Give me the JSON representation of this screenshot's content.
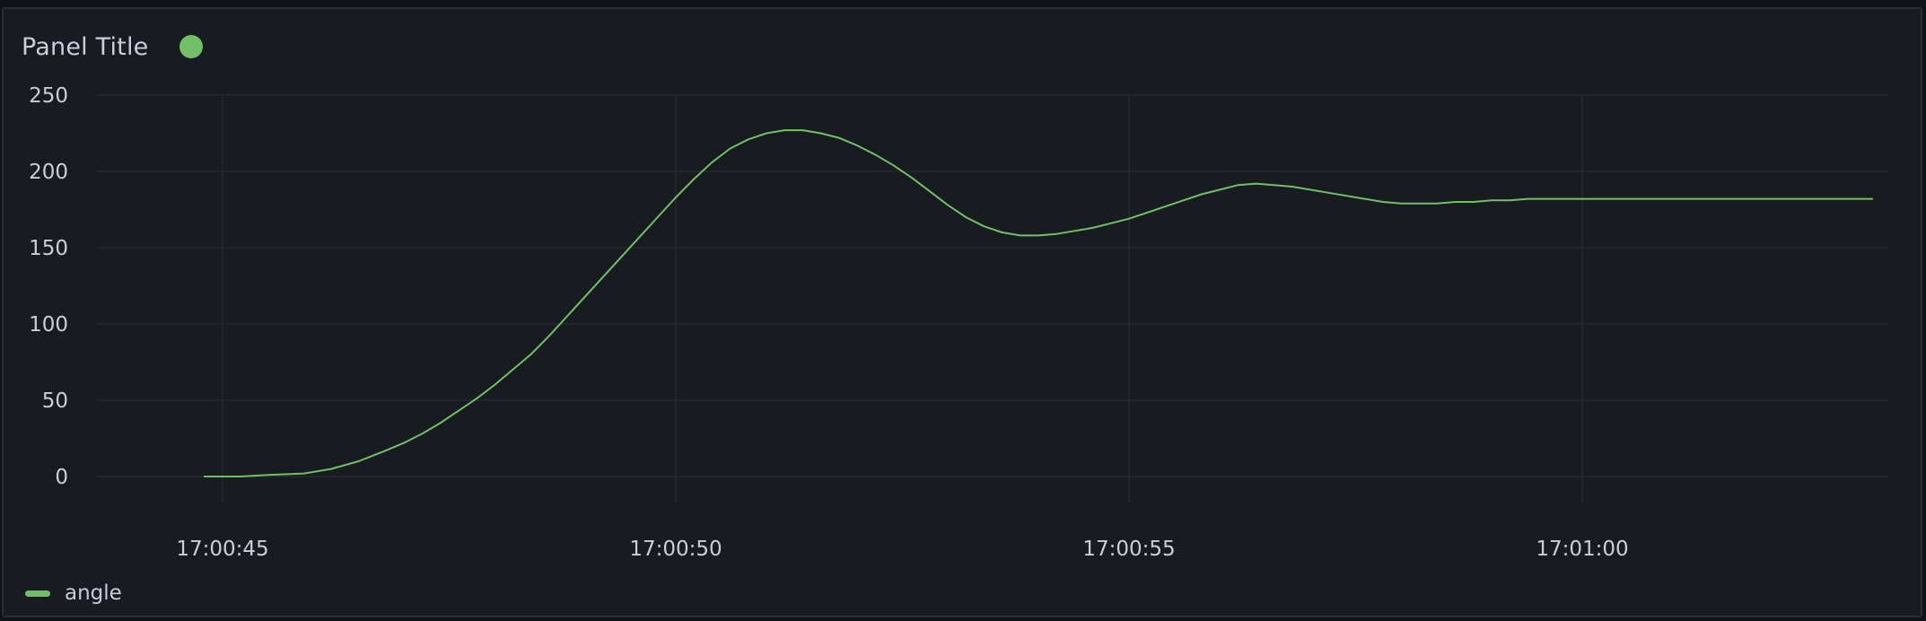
{
  "panel": {
    "title": "Panel Title",
    "status_color": "#73bf69"
  },
  "chart_data": {
    "type": "line",
    "ylim": [
      0,
      250
    ],
    "y_ticks": [
      0,
      50,
      100,
      150,
      200,
      250
    ],
    "x_range": [
      "17:00:43",
      "17:01:04"
    ],
    "x_ticks": [
      "17:00:45",
      "17:00:50",
      "17:00:55",
      "17:01:00"
    ],
    "grid": true,
    "legend": "bottom-left",
    "series": [
      {
        "name": "angle",
        "color": "#73bf69",
        "x": [
          "17:00:44.8",
          "17:00:45.2",
          "17:00:45.5",
          "17:00:45.9",
          "17:00:46.2",
          "17:00:46.5",
          "17:00:46.8",
          "17:00:47.0",
          "17:00:47.2",
          "17:00:47.4",
          "17:00:47.6",
          "17:00:47.8",
          "17:00:48.0",
          "17:00:48.2",
          "17:00:48.4",
          "17:00:48.6",
          "17:00:48.8",
          "17:00:49.0",
          "17:00:49.2",
          "17:00:49.4",
          "17:00:49.6",
          "17:00:49.8",
          "17:00:50.0",
          "17:00:50.2",
          "17:00:50.4",
          "17:00:50.6",
          "17:00:50.8",
          "17:00:51.0",
          "17:00:51.2",
          "17:00:51.4",
          "17:00:51.6",
          "17:00:51.8",
          "17:00:52.0",
          "17:00:52.2",
          "17:00:52.4",
          "17:00:52.6",
          "17:00:52.8",
          "17:00:53.0",
          "17:00:53.2",
          "17:00:53.4",
          "17:00:53.6",
          "17:00:53.8",
          "17:00:54.0",
          "17:00:54.2",
          "17:00:54.4",
          "17:00:54.6",
          "17:00:54.8",
          "17:00:55.0",
          "17:00:55.2",
          "17:00:55.4",
          "17:00:55.6",
          "17:00:55.8",
          "17:00:56.0",
          "17:00:56.2",
          "17:00:56.4",
          "17:00:56.6",
          "17:00:56.8",
          "17:00:57.0",
          "17:00:57.2",
          "17:00:57.4",
          "17:00:57.6",
          "17:00:57.8",
          "17:00:58.0",
          "17:00:58.2",
          "17:00:58.4",
          "17:00:58.6",
          "17:00:58.8",
          "17:00:59.0",
          "17:00:59.2",
          "17:00:59.4",
          "17:00:59.6",
          "17:00:59.8",
          "17:01:00.0",
          "17:01:00.5",
          "17:01:01.0",
          "17:01:01.5",
          "17:01:02.0",
          "17:01:02.5",
          "17:01:03.0",
          "17:01:03.2"
        ],
        "values": [
          0,
          0,
          1,
          2,
          5,
          10,
          17,
          22,
          28,
          35,
          43,
          51,
          60,
          70,
          80,
          92,
          105,
          118,
          131,
          144,
          157,
          170,
          183,
          195,
          206,
          215,
          221,
          225,
          227,
          227,
          225,
          222,
          217,
          211,
          204,
          196,
          187,
          178,
          170,
          164,
          160,
          158,
          158,
          159,
          161,
          163,
          166,
          169,
          173,
          177,
          181,
          185,
          188,
          191,
          192,
          191,
          190,
          188,
          186,
          184,
          182,
          180,
          179,
          179,
          179,
          180,
          180,
          181,
          181,
          182,
          182,
          182,
          182,
          182,
          182,
          182,
          182,
          182,
          182,
          182
        ]
      }
    ]
  }
}
